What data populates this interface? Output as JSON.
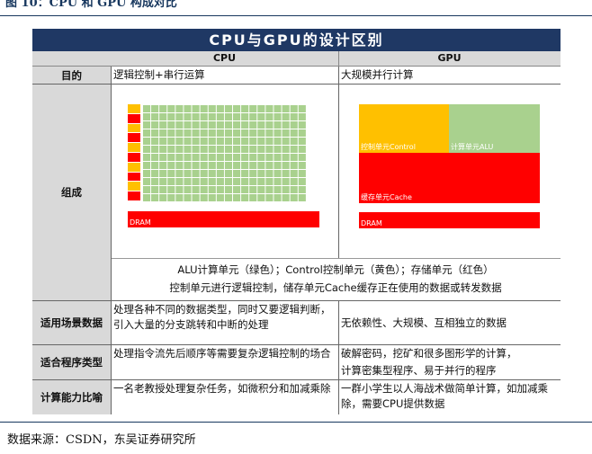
{
  "figure_title": "图 10：CPU 和 GPU 构成对比",
  "banner": "CPU与GPU的设计区别",
  "headers": {
    "cpu": "CPU",
    "gpu": "GPU"
  },
  "rows": {
    "purpose": {
      "label": "目的",
      "cpu": "逻辑控制+串行运算",
      "gpu": "大规模并行计算"
    },
    "composition": {
      "label": "组成",
      "cpu_dram": "DRAM",
      "gpu_control": "控制单元Control",
      "gpu_alu": "计算单元ALU",
      "gpu_cache": "缓存单元Cache",
      "gpu_dram": "DRAM",
      "note_line1": "ALU计算单元（绿色）；Control控制单元（黄色）；存储单元（红色）",
      "note_line2": "控制单元进行逻辑控制，储存单元Cache缓存正在使用的数据或转发数据"
    },
    "scenario": {
      "label": "适用场景数据",
      "cpu": "处理各种不同的数据类型，同时又要逻辑判断，引入大量的分支跳转和中断的处理",
      "gpu": "无依赖性、大规模、互相独立的数据"
    },
    "program": {
      "label": "适合程序类型",
      "cpu": "处理指令流先后顺序等需要复杂逻辑控制的场合",
      "gpu_line1": "破解密码，挖矿和很多图形学的计算，",
      "gpu_line2": "计算密集型程序、易于并行的程序"
    },
    "analogy": {
      "label": "计算能力比喻",
      "cpu": "一名老教授处理复杂任务，如微积分和加减乘除",
      "gpu": "一群小学生以人海战术做简单计算，如加减乘除，需要CPU提供数据"
    }
  },
  "source": "数据来源：CSDN，东吴证券研究所",
  "colors": {
    "banner": "#1f3864",
    "alu": "#a9d18e",
    "control": "#ffc000",
    "storage": "#ff0000",
    "label_bg": "#d9d9d9"
  }
}
